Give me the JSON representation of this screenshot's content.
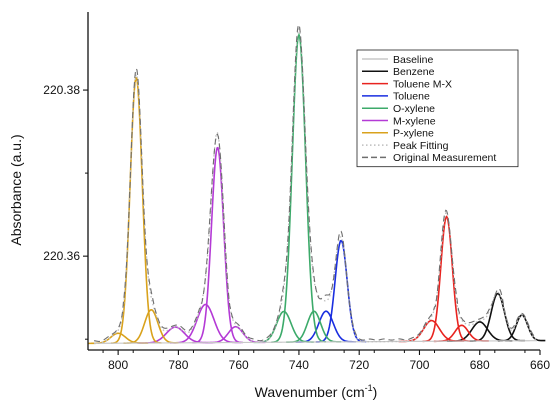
{
  "chart_data": {
    "type": "line",
    "xlabel": "Wavenumber (cm",
    "xlabel_sup": "-1",
    "xlabel_close": ")",
    "ylabel": "Absorbance (a.u.)",
    "xlim": [
      810,
      660
    ],
    "x_reversed": true,
    "ylim": [
      220.3487,
      220.3894
    ],
    "x_ticks": [
      800,
      780,
      760,
      740,
      720,
      700,
      680,
      660
    ],
    "y_ticks": [
      220.36,
      220.38
    ],
    "y_tick_labels": [
      "220.36",
      "220.38"
    ],
    "baseline": 220.3495,
    "baseline_slope": 2.2e-06,
    "x_range": [
      808,
      661
    ],
    "legend_position": "top-right",
    "series": [
      {
        "name": "Baseline",
        "color": "#c8c8c8",
        "style": "solid",
        "peaks": []
      },
      {
        "name": "Benzene",
        "color": "#111111",
        "style": "solid",
        "peaks": [
          {
            "center": 680,
            "height": 0.0023,
            "width": 2.6
          },
          {
            "center": 674,
            "height": 0.0057,
            "width": 2.2
          },
          {
            "center": 666,
            "height": 0.0031,
            "width": 1.9
          }
        ]
      },
      {
        "name": "Toluene M-X",
        "color": "#e8231f",
        "style": "solid",
        "peaks": [
          {
            "center": 696,
            "height": 0.0025,
            "width": 2.6
          },
          {
            "center": 691,
            "height": 0.015,
            "width": 1.9
          },
          {
            "center": 686,
            "height": 0.0019,
            "width": 2.2
          }
        ]
      },
      {
        "name": "Toluene",
        "color": "#1a2ee0",
        "style": "solid",
        "peaks": [
          {
            "center": 731,
            "height": 0.0037,
            "width": 2.4
          },
          {
            "center": 726,
            "height": 0.0122,
            "width": 2.0
          }
        ]
      },
      {
        "name": "O-xylene",
        "color": "#3caa6a",
        "style": "solid",
        "peaks": [
          {
            "center": 745,
            "height": 0.0037,
            "width": 2.4
          },
          {
            "center": 740,
            "height": 0.037,
            "width": 2.2
          },
          {
            "center": 735,
            "height": 0.0037,
            "width": 2.2
          }
        ]
      },
      {
        "name": "M-xylene",
        "color": "#b43ad6",
        "style": "solid",
        "peaks": [
          {
            "center": 781,
            "height": 0.0019,
            "width": 3.0
          },
          {
            "center": 771,
            "height": 0.0046,
            "width": 2.8
          },
          {
            "center": 767,
            "height": 0.0235,
            "width": 2.0
          },
          {
            "center": 761,
            "height": 0.0019,
            "width": 2.4
          }
        ]
      },
      {
        "name": "P-xylene",
        "color": "#d9a21c",
        "style": "solid",
        "peaks": [
          {
            "center": 800,
            "height": 0.0012,
            "width": 2.4
          },
          {
            "center": 794,
            "height": 0.032,
            "width": 2.0
          },
          {
            "center": 789,
            "height": 0.004,
            "width": 2.2
          }
        ]
      },
      {
        "name": "Peak Fitting",
        "color": "#bdbdbd",
        "style": "dotted",
        "peaks": []
      },
      {
        "name": "Original Measurement",
        "color": "#6e6e6e",
        "style": "dashed",
        "peaks": []
      }
    ]
  }
}
